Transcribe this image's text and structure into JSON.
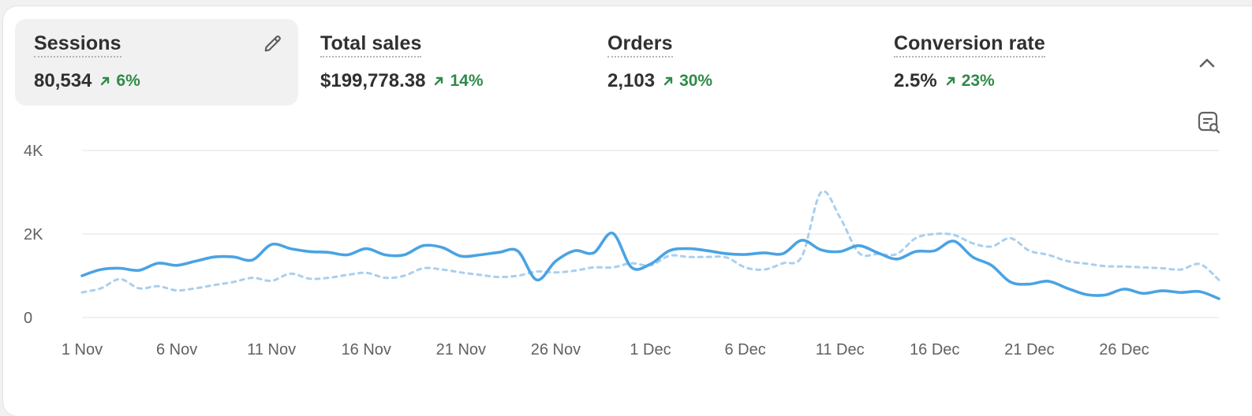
{
  "metrics": [
    {
      "label": "Sessions",
      "value": "80,534",
      "change": "6%"
    },
    {
      "label": "Total sales",
      "value": "$199,778.38",
      "change": "14%"
    },
    {
      "label": "Orders",
      "value": "2,103",
      "change": "30%"
    },
    {
      "label": "Conversion rate",
      "value": "2.5%",
      "change": "23%"
    }
  ],
  "icons": {
    "edit": "pencil-icon",
    "collapse": "chevron-up-icon",
    "explore": "explore-data-icon",
    "trend": "arrow-up-right-icon"
  },
  "colors": {
    "accent": "#4aa3e3",
    "comparison": "#a9cfee",
    "positive": "#2f8a4a",
    "active_tab_bg": "#f1f1f1",
    "gridline": "#e6e6e6"
  },
  "chart_data": {
    "type": "line",
    "ylim": [
      0,
      4000
    ],
    "ytick_labels": [
      "4K",
      "2K",
      "0"
    ],
    "ytick_values": [
      4000,
      2000,
      0
    ],
    "grid": true,
    "legend": "none",
    "xtick_labels": [
      "1 Nov",
      "6 Nov",
      "11 Nov",
      "16 Nov",
      "21 Nov",
      "26 Nov",
      "1 Dec",
      "6 Dec",
      "11 Dec",
      "16 Dec",
      "21 Dec",
      "26 Dec"
    ],
    "xtick_positions": [
      1,
      6,
      11,
      16,
      21,
      26,
      31,
      36,
      41,
      46,
      51,
      56
    ],
    "x": [
      1,
      2,
      3,
      4,
      5,
      6,
      7,
      8,
      9,
      10,
      11,
      12,
      13,
      14,
      15,
      16,
      17,
      18,
      19,
      20,
      21,
      22,
      23,
      24,
      25,
      26,
      27,
      28,
      29,
      30,
      31,
      32,
      33,
      34,
      35,
      36,
      37,
      38,
      39,
      40,
      41,
      42,
      43,
      44,
      45,
      46,
      47,
      48,
      49,
      50,
      51,
      52,
      53,
      54,
      55,
      56,
      57,
      58,
      59,
      60,
      61
    ],
    "series": [
      {
        "style": "solid",
        "values": [
          1000,
          1150,
          1180,
          1130,
          1300,
          1250,
          1350,
          1450,
          1450,
          1380,
          1750,
          1650,
          1580,
          1560,
          1500,
          1650,
          1500,
          1500,
          1720,
          1680,
          1470,
          1500,
          1560,
          1590,
          900,
          1350,
          1600,
          1550,
          2020,
          1200,
          1280,
          1600,
          1650,
          1600,
          1530,
          1510,
          1550,
          1530,
          1850,
          1620,
          1580,
          1720,
          1550,
          1400,
          1580,
          1600,
          1830,
          1450,
          1250,
          850,
          800,
          870,
          700,
          550,
          540,
          680,
          580,
          640,
          600,
          620,
          450
        ]
      },
      {
        "style": "dashed",
        "values": [
          600,
          700,
          920,
          700,
          750,
          650,
          700,
          780,
          850,
          950,
          880,
          1050,
          930,
          950,
          1020,
          1070,
          950,
          1000,
          1180,
          1150,
          1080,
          1020,
          970,
          1000,
          1100,
          1080,
          1120,
          1200,
          1200,
          1300,
          1250,
          1480,
          1450,
          1450,
          1440,
          1200,
          1150,
          1300,
          1470,
          3000,
          2400,
          1550,
          1520,
          1520,
          1900,
          2000,
          1980,
          1780,
          1700,
          1900,
          1600,
          1500,
          1350,
          1290,
          1230,
          1220,
          1200,
          1180,
          1150,
          1280,
          900
        ]
      }
    ]
  }
}
